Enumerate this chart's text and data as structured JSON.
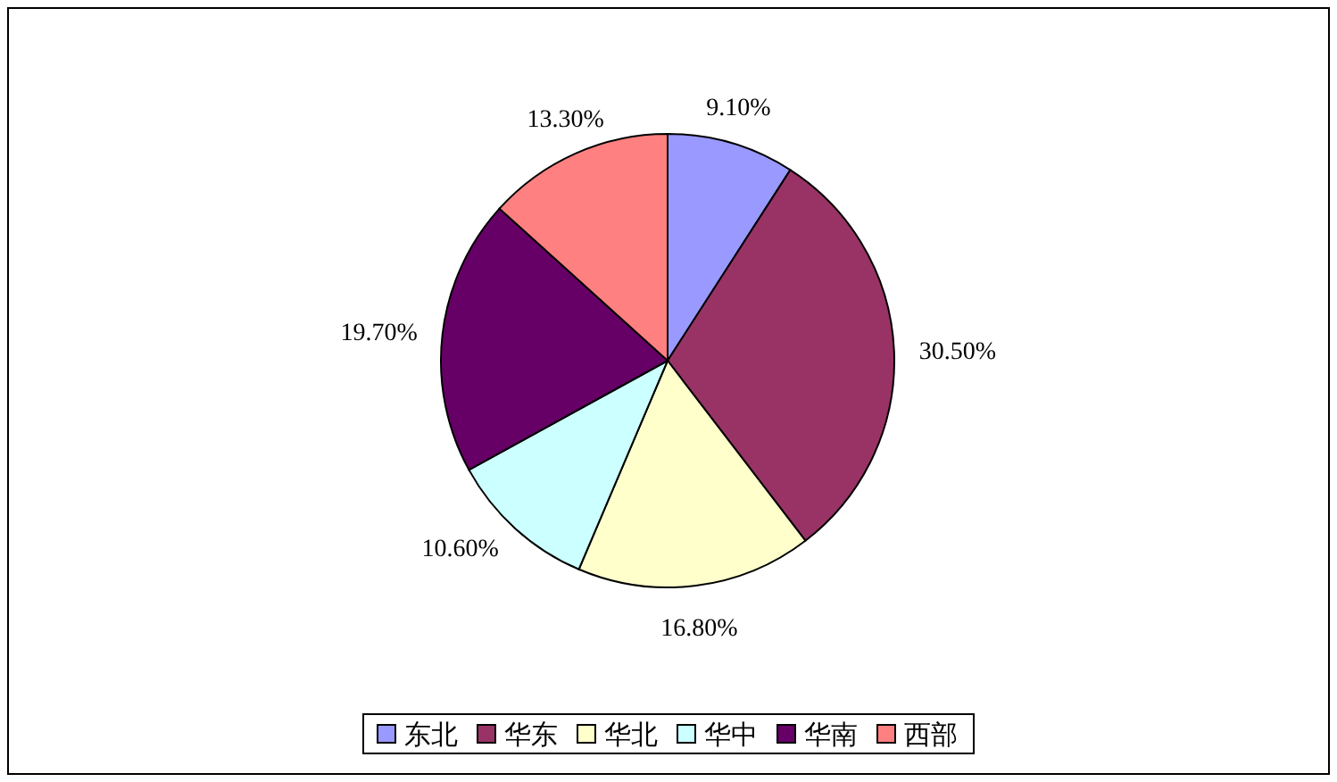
{
  "chart_data": {
    "type": "pie",
    "categories": [
      "东北",
      "华东",
      "华北",
      "华中",
      "华南",
      "西部"
    ],
    "values": [
      9.1,
      30.5,
      16.8,
      10.6,
      19.7,
      13.3
    ],
    "value_labels": [
      "9.10%",
      "30.50%",
      "16.80%",
      "10.60%",
      "19.70%",
      "13.30%"
    ],
    "colors": [
      "#9999ff",
      "#993366",
      "#ffffcc",
      "#ccffff",
      "#660066",
      "#ff8080"
    ],
    "legend": "bottom"
  }
}
